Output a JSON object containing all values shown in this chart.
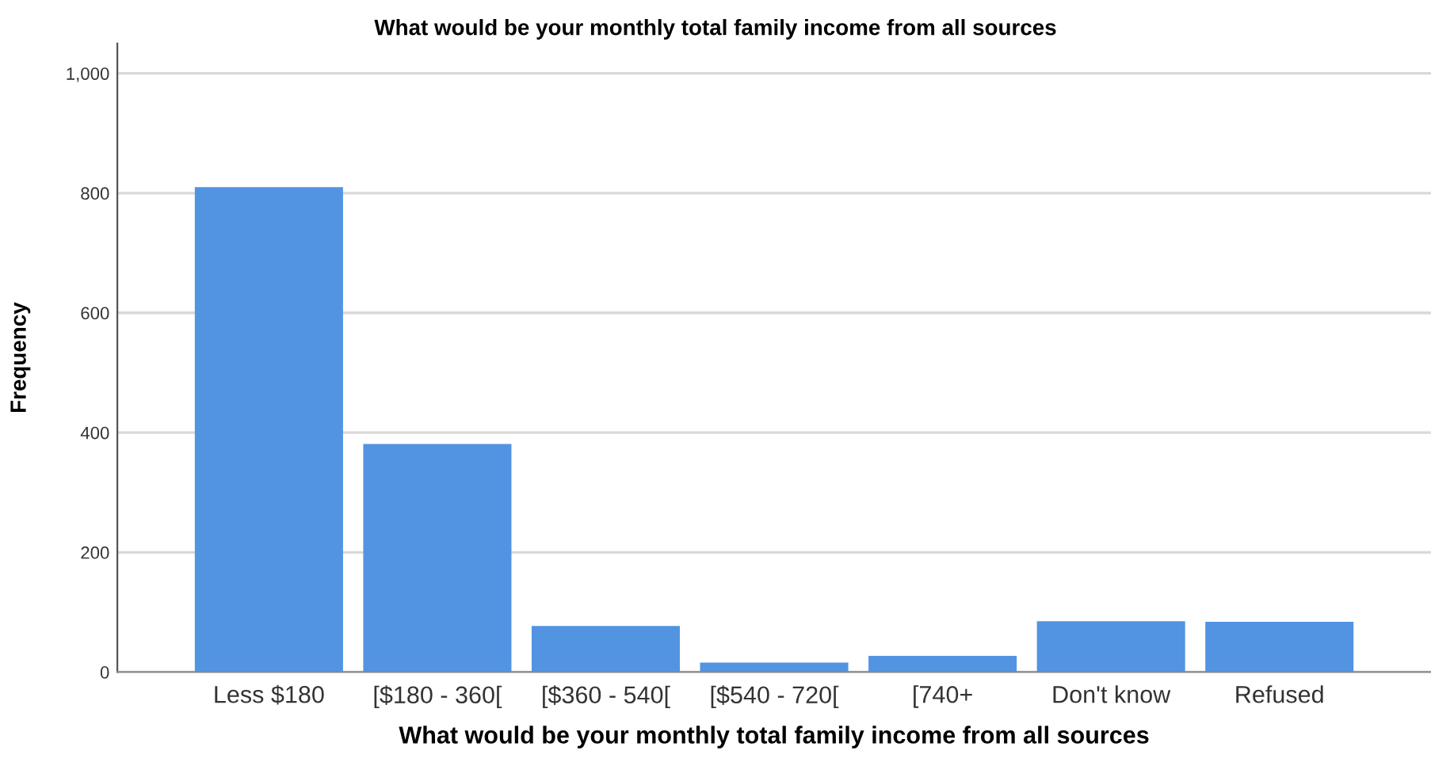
{
  "chart_data": {
    "type": "bar",
    "title": "What would be your monthly total family income from all sources",
    "xlabel": "What would be your monthly total family income from all sources",
    "ylabel": "Frequency",
    "categories": [
      "Less $180",
      "[$180 - 360[",
      "[$360 - 540[",
      "[$540 - 720[",
      "[740+",
      "Don't know",
      "Refused"
    ],
    "values": [
      810,
      381,
      77,
      16,
      27,
      85,
      84
    ],
    "color": "#5294e2",
    "ylim": [
      0,
      1050
    ],
    "yticks": [
      0,
      200,
      400,
      600,
      800,
      {
        "value": 1000,
        "label": "1,000"
      }
    ],
    "grid": "y"
  }
}
